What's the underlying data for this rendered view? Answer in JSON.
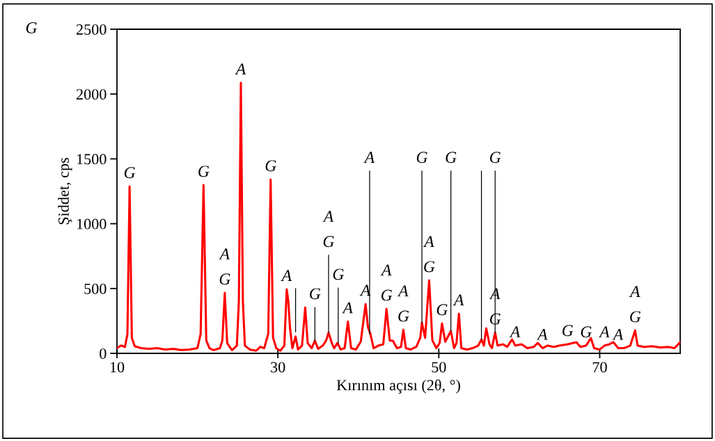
{
  "chart_data": {
    "type": "line",
    "xlabel": "Kırınım açısı (2θ, °)",
    "ylabel": "Şiddet, cps",
    "xlim": [
      10,
      80
    ],
    "xticks": [
      10,
      30,
      50,
      70
    ],
    "ylim": [
      0,
      2500
    ],
    "yticks": [
      0,
      500,
      1000,
      1500,
      2000,
      2500
    ],
    "grid": false,
    "marker": "none",
    "line_style": "solid",
    "series": [
      {
        "color": "#ff0000",
        "x": [
          10.0,
          10.5,
          11.0,
          11.3,
          11.57,
          11.85,
          12.2,
          13,
          14,
          15,
          16,
          17,
          18,
          19,
          20,
          20.4,
          20.76,
          21.1,
          21.5,
          22,
          22.8,
          23.1,
          23.4,
          23.7,
          24.0,
          24.3,
          24.9,
          25.15,
          25.4,
          25.65,
          25.9,
          26.5,
          27.3,
          27.8,
          28.3,
          28.8,
          29.1,
          29.4,
          29.8,
          30.3,
          30.8,
          31.1,
          31.3,
          31.5,
          31.8,
          32.2,
          32.5,
          33.0,
          33.4,
          33.7,
          34.2,
          34.6,
          35.0,
          35.6,
          36.0,
          36.3,
          36.7,
          37.0,
          37.4,
          37.8,
          38.3,
          38.7,
          39.1,
          39.7,
          40.3,
          40.9,
          41.2,
          41.5,
          41.9,
          42.5,
          43.1,
          43.5,
          43.9,
          44.3,
          44.8,
          45.3,
          45.6,
          45.9,
          46.5,
          47.2,
          47.7,
          47.9,
          48.3,
          48.8,
          49.2,
          49.7,
          50.1,
          50.4,
          50.8,
          51.5,
          51.9,
          52.2,
          52.5,
          52.8,
          53.5,
          54.2,
          54.9,
          55.3,
          55.6,
          55.9,
          56.3,
          56.6,
          57.0,
          57.3,
          58.0,
          58.5,
          59.1,
          59.5,
          60.3,
          61.0,
          61.8,
          62.3,
          62.9,
          63.5,
          64.3,
          65.0,
          66.0,
          67.1,
          67.6,
          68.3,
          68.9,
          69.3,
          70.0,
          70.6,
          71.2,
          71.7,
          72.3,
          73.0,
          73.8,
          74.4,
          74.7,
          75.5,
          76.5,
          77.5,
          78.5,
          79.3,
          80.0
        ],
        "values": [
          40,
          60,
          50,
          150,
          1288,
          120,
          55,
          40,
          35,
          40,
          30,
          35,
          25,
          30,
          40,
          150,
          1298,
          100,
          40,
          25,
          40,
          100,
          467,
          80,
          50,
          25,
          60,
          400,
          2087,
          400,
          60,
          30,
          20,
          50,
          40,
          150,
          1341,
          120,
          40,
          20,
          60,
          494,
          400,
          200,
          40,
          130,
          30,
          60,
          354,
          80,
          40,
          97,
          35,
          60,
          100,
          160,
          80,
          40,
          80,
          30,
          40,
          245,
          40,
          30,
          90,
          380,
          200,
          150,
          40,
          60,
          70,
          343,
          100,
          97,
          40,
          50,
          182,
          40,
          30,
          50,
          120,
          236,
          120,
          563,
          100,
          40,
          80,
          231,
          90,
          172,
          40,
          80,
          306,
          40,
          30,
          40,
          60,
          107,
          60,
          193,
          70,
          40,
          160,
          60,
          70,
          50,
          107,
          60,
          70,
          40,
          50,
          80,
          40,
          60,
          50,
          60,
          70,
          86,
          50,
          60,
          118,
          40,
          30,
          60,
          70,
          86,
          40,
          40,
          60,
          177,
          60,
          50,
          55,
          45,
          50,
          40,
          86
        ]
      },
      {
        "color": "#000000",
        "x": [
          32.2,
          32.2
        ],
        "values": [
          166,
          499
        ]
      },
      {
        "color": "#000000",
        "x": [
          34.6,
          34.6
        ],
        "values": [
          97,
          354
        ]
      },
      {
        "color": "#000000",
        "x": [
          36.3,
          36.3
        ],
        "values": [
          160,
          757
        ]
      },
      {
        "color": "#000000",
        "x": [
          37.5,
          37.5
        ],
        "values": [
          80,
          504
        ]
      },
      {
        "color": "#000000",
        "x": [
          41.4,
          41.4
        ],
        "values": [
          150,
          1406
        ]
      },
      {
        "color": "#000000",
        "x": [
          47.9,
          47.9
        ],
        "values": [
          236,
          1406
        ]
      },
      {
        "color": "#000000",
        "x": [
          51.5,
          51.5
        ],
        "values": [
          172,
          1406
        ]
      },
      {
        "color": "#000000",
        "x": [
          55.3,
          55.3
        ],
        "values": [
          107,
          1406
        ]
      },
      {
        "color": "#000000",
        "x": [
          57.0,
          57.0
        ],
        "values": [
          160,
          1406
        ]
      }
    ],
    "annotations": [
      "G",
      {
        "text": "G",
        "x": 11.57,
        "y": 1288
      },
      {
        "text": "G",
        "x": 20.76,
        "y": 1298
      },
      {
        "text": "A",
        "x": 23.4,
        "y": 467
      },
      {
        "text": "G",
        "x": 23.4,
        "y": 467
      },
      {
        "text": "A",
        "x": 25.4,
        "y": 2087
      },
      {
        "text": "G",
        "x": 29.1,
        "y": 1341
      },
      {
        "text": "A",
        "x": 31.1,
        "y": 494
      },
      {
        "text": "G",
        "x": 34.6,
        "y": 354
      },
      {
        "text": "A",
        "x": 36.3,
        "y": 757
      },
      {
        "text": "G",
        "x": 36.3,
        "y": 757
      },
      {
        "text": "G",
        "x": 37.5,
        "y": 504
      },
      {
        "text": "A",
        "x": 38.7,
        "y": 245
      },
      {
        "text": "A",
        "x": 40.9,
        "y": 380
      },
      {
        "text": "A",
        "x": 41.4,
        "y": 1406
      },
      {
        "text": "A",
        "x": 43.5,
        "y": 343
      },
      {
        "text": "G",
        "x": 43.5,
        "y": 343
      },
      {
        "text": "A",
        "x": 45.6,
        "y": 182
      },
      {
        "text": "G",
        "x": 45.6,
        "y": 182
      },
      {
        "text": "G",
        "x": 47.9,
        "y": 1406
      },
      {
        "text": "A",
        "x": 48.8,
        "y": 563
      },
      {
        "text": "G",
        "x": 48.8,
        "y": 563
      },
      {
        "text": "G",
        "x": 50.4,
        "y": 231
      },
      {
        "text": "G",
        "x": 51.5,
        "y": 1406
      },
      {
        "text": "A",
        "x": 52.5,
        "y": 306
      },
      {
        "text": "G",
        "x": 57.0,
        "y": 1406
      },
      {
        "text": "A",
        "x": 57.0,
        "y": 160
      },
      {
        "text": "G",
        "x": 57.0,
        "y": 160
      },
      {
        "text": "A",
        "x": 59.5,
        "y": 60
      },
      {
        "text": "A",
        "x": 62.9,
        "y": 40
      },
      {
        "text": "G",
        "x": 66.0,
        "y": 70
      },
      {
        "text": "G",
        "x": 68.3,
        "y": 60
      },
      {
        "text": "A",
        "x": 70.6,
        "y": 60
      },
      {
        "text": "A",
        "x": 72.3,
        "y": 40
      },
      {
        "text": "A",
        "x": 74.4,
        "y": 177
      },
      {
        "text": "G",
        "x": 74.4,
        "y": 177
      }
    ]
  }
}
